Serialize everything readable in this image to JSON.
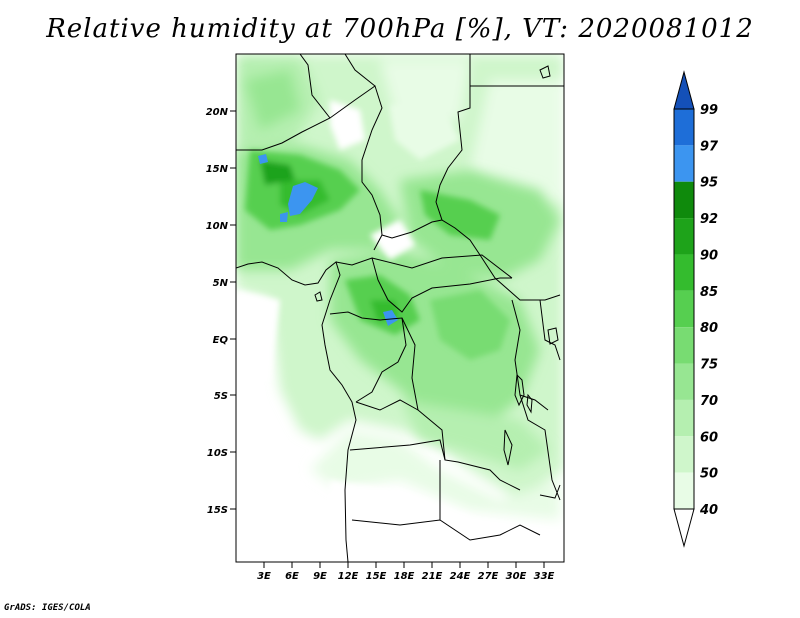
{
  "title": "Relative humidity at 700hPa [%], VT: 2020081012",
  "credit": "GrADS: IGES/COLA",
  "map": {
    "lat_labels": [
      "20N",
      "15N",
      "10N",
      "5N",
      "EQ",
      "5S",
      "10S",
      "15S"
    ],
    "lon_labels": [
      "3E",
      "6E",
      "9E",
      "12E",
      "15E",
      "18E",
      "21E",
      "24E",
      "27E",
      "30E",
      "33E"
    ]
  },
  "colorbar": {
    "levels": [
      "40",
      "50",
      "60",
      "70",
      "75",
      "80",
      "85",
      "90",
      "92",
      "95",
      "97",
      "99"
    ],
    "colors": [
      "#ffffff",
      "#e8fce6",
      "#cff6cb",
      "#b5efb0",
      "#97e692",
      "#78dc72",
      "#56cf50",
      "#34bc2e",
      "#1ea31a",
      "#0f8a0c",
      "#3c95f0",
      "#1e6ed8",
      "#1450b8"
    ]
  }
}
